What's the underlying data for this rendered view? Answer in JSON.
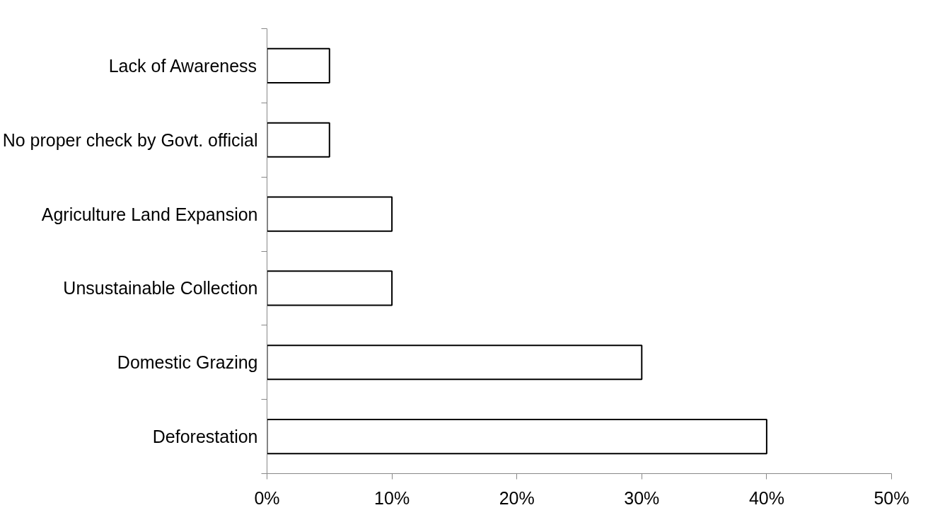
{
  "chart_data": {
    "type": "bar",
    "orientation": "horizontal",
    "categories": [
      "Lack of Awareness",
      "No proper check by Govt. official",
      "Agriculture Land Expansion",
      "Unsustainable Collection",
      "Domestic Grazing",
      "Deforestation"
    ],
    "values": [
      5,
      5,
      10,
      10,
      30,
      40
    ],
    "color": "#ffffff",
    "xlim": [
      0,
      50
    ],
    "xticks": [
      {
        "value": 0,
        "label": "0%"
      },
      {
        "value": 10,
        "label": "10%"
      },
      {
        "value": 20,
        "label": "20%"
      },
      {
        "value": 30,
        "label": "30%"
      },
      {
        "value": 40,
        "label": "40%"
      },
      {
        "value": 50,
        "label": "50%"
      }
    ],
    "grid": false
  }
}
